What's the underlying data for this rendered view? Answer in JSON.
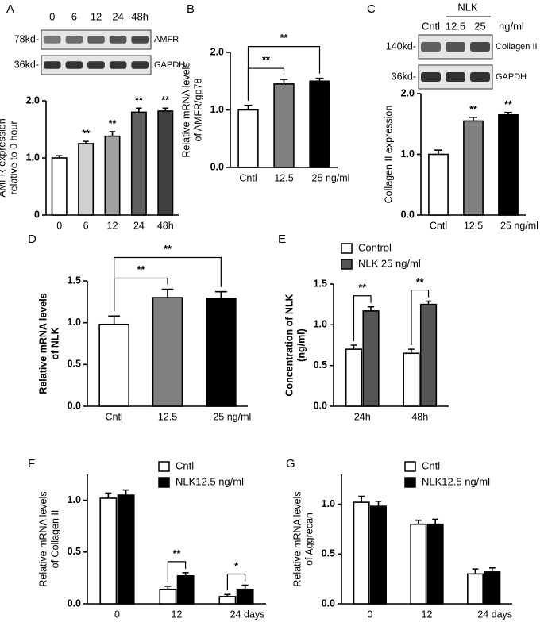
{
  "chart_data": [
    {
      "type": "bar",
      "panel": "A",
      "ylabel": [
        "AMFR expression",
        "relative to 0 hour"
      ],
      "categories": [
        "0",
        "6",
        "12",
        "24",
        "48h"
      ],
      "values": [
        1.0,
        1.25,
        1.38,
        1.8,
        1.82
      ],
      "errors": [
        0.04,
        0.04,
        0.08,
        0.07,
        0.05
      ],
      "colors": [
        "#ffffff",
        "#d0d0d0",
        "#a0a0a0",
        "#606060",
        "#404040"
      ],
      "significance": [
        null,
        "**",
        "**",
        "**",
        "**"
      ],
      "significance_style": "star",
      "ylim": [
        0,
        2.0
      ],
      "yticks": [
        0,
        {
          "value": 1,
          "label": "1.0"
        },
        {
          "value": 2,
          "label": "2.0"
        }
      ],
      "blot": {
        "lanes": [
          "0",
          "6",
          "12",
          "24",
          "48h"
        ],
        "rows": [
          {
            "marker": "78kd-",
            "name": "AMFR"
          },
          {
            "marker": "36kd-",
            "name": "GAPDH"
          }
        ]
      }
    },
    {
      "type": "bar",
      "panel": "B",
      "ylabel": [
        "Relative mRNA levels",
        "of AMFR/gp78"
      ],
      "categories": [
        "Cntl",
        "12.5",
        "25 ng/ml"
      ],
      "values": [
        1.0,
        1.45,
        1.5
      ],
      "errors": [
        0.08,
        0.08,
        0.05
      ],
      "colors": [
        "#ffffff",
        "#808080",
        "#000000"
      ],
      "significance": [
        null,
        "**",
        "**"
      ],
      "significance_style": "bracket",
      "ylim": [
        0,
        2.0
      ],
      "yticks": [
        {
          "value": 0,
          "label": "0.0"
        },
        {
          "value": 1,
          "label": "1.0"
        },
        {
          "value": 2,
          "label": "2.0"
        }
      ]
    },
    {
      "type": "bar",
      "panel": "C",
      "ylabel": [
        "Collagen II expression"
      ],
      "categories": [
        "Cntl",
        "12.5",
        "25 ng/ml"
      ],
      "values": [
        1.0,
        1.55,
        1.65
      ],
      "errors": [
        0.07,
        0.06,
        0.04
      ],
      "colors": [
        "#ffffff",
        "#808080",
        "#000000"
      ],
      "significance": [
        null,
        "**",
        "**"
      ],
      "significance_style": "star",
      "ylim": [
        0,
        2.0
      ],
      "yticks": [
        {
          "value": 0,
          "label": "0.0"
        },
        {
          "value": 1,
          "label": "1.0"
        },
        {
          "value": 2,
          "label": "2.0"
        }
      ],
      "blot": {
        "group": "NLK",
        "lanes": [
          "Cntl",
          "12.5",
          "25"
        ],
        "unit": "ng/ml",
        "rows": [
          {
            "marker": "140kd-",
            "name": "Collagen II"
          },
          {
            "marker": "36kd-",
            "name": "GAPDH"
          }
        ]
      }
    },
    {
      "type": "bar",
      "panel": "D",
      "ylabel": [
        "Relative mRNA levels",
        "of NLK"
      ],
      "ylabel_bold": true,
      "categories": [
        "Cntl",
        "12.5",
        "25 ng/ml"
      ],
      "values": [
        0.98,
        1.3,
        1.29
      ],
      "errors": [
        0.1,
        0.1,
        0.08
      ],
      "colors": [
        "#ffffff",
        "#808080",
        "#000000"
      ],
      "significance": [
        null,
        "**",
        "**"
      ],
      "significance_style": "bracket",
      "ylim": [
        0,
        1.5
      ],
      "yticks": [
        {
          "value": 0,
          "label": "0.0"
        },
        0.5,
        {
          "value": 1,
          "label": "1.0"
        },
        1.5
      ]
    },
    {
      "type": "bar",
      "panel": "E",
      "ylabel": [
        "Concentration of NLK",
        "(ng/ml)"
      ],
      "ylabel_bold": true,
      "categories": [
        "24h",
        "48h"
      ],
      "series": [
        {
          "name": "Control",
          "color": "#ffffff",
          "values": [
            0.7,
            0.65
          ],
          "errors": [
            0.05,
            0.05
          ]
        },
        {
          "name": "NLK 25 ng/ml",
          "color": "#555555",
          "values": [
            1.17,
            1.25
          ],
          "errors": [
            0.05,
            0.04
          ]
        }
      ],
      "significance": [
        "**",
        "**"
      ],
      "ylim": [
        0,
        1.5
      ],
      "yticks": [
        {
          "value": 0,
          "label": "0.0"
        },
        0.5,
        {
          "value": 1,
          "label": "1.0"
        },
        1.5
      ]
    },
    {
      "type": "bar",
      "panel": "F",
      "ylabel": [
        "Relative mRNA levels",
        "of Collagen II"
      ],
      "categories": [
        "0",
        "12",
        "24 days"
      ],
      "series": [
        {
          "name": "Cntl",
          "color": "#ffffff",
          "values": [
            1.02,
            0.14,
            0.07
          ],
          "errors": [
            0.05,
            0.03,
            0.02
          ]
        },
        {
          "name": "NLK12.5 ng/ml",
          "color": "#000000",
          "values": [
            1.05,
            0.27,
            0.14
          ],
          "errors": [
            0.05,
            0.03,
            0.04
          ]
        }
      ],
      "significance": [
        null,
        "**",
        "*"
      ],
      "ylim": [
        0,
        1.25
      ],
      "yticks": [
        {
          "value": 0,
          "label": "0.0"
        },
        0.5,
        {
          "value": 1,
          "label": "1.0"
        }
      ]
    },
    {
      "type": "bar",
      "panel": "G",
      "ylabel": [
        "Relative mRNA levels",
        "of Aggrecan"
      ],
      "categories": [
        "0",
        "12",
        "24 days"
      ],
      "series": [
        {
          "name": "Cntl",
          "color": "#ffffff",
          "values": [
            1.02,
            0.8,
            0.3
          ],
          "errors": [
            0.06,
            0.04,
            0.05
          ]
        },
        {
          "name": "NLK12.5 ng/ml",
          "color": "#000000",
          "values": [
            0.98,
            0.8,
            0.32
          ],
          "errors": [
            0.05,
            0.05,
            0.04
          ]
        }
      ],
      "ylim": [
        0,
        1.3
      ],
      "yticks": [
        {
          "value": 0,
          "label": "0.0"
        },
        0.5,
        {
          "value": 1,
          "label": "1.0"
        }
      ]
    }
  ]
}
